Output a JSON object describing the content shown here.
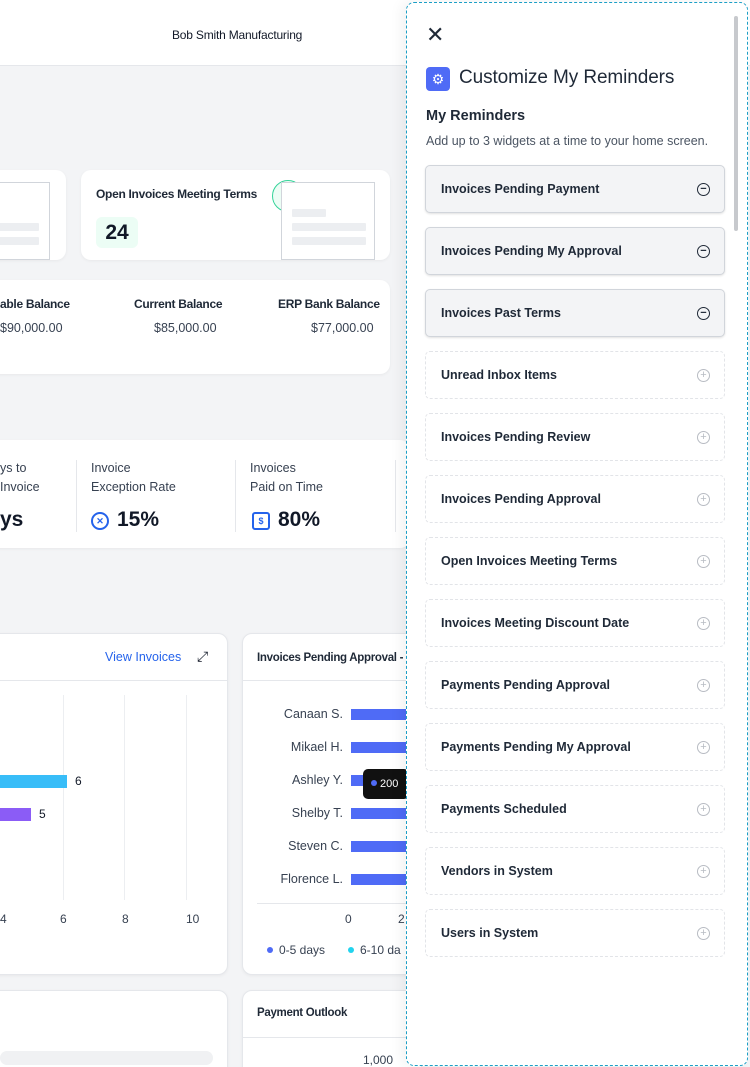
{
  "header": {
    "company": "Bob Smith Manufacturing"
  },
  "open_invoices_card": {
    "title": "Open Invoices Meeting Terms",
    "count": "24"
  },
  "balances": [
    {
      "label": "able Balance",
      "value": "$90,000.00"
    },
    {
      "label": "Current Balance",
      "value": "$85,000.00"
    },
    {
      "label": "ERP Bank Balance",
      "value": "$77,000.00"
    }
  ],
  "kpis": [
    {
      "line1": "ys to",
      "line2": "Invoice",
      "value": "ys"
    },
    {
      "line1": "Invoice",
      "line2": "Exception Rate",
      "value": "15%",
      "icon": "x-circle-icon"
    },
    {
      "line1": "Invoices",
      "line2": "Paid on Time",
      "value": "80%",
      "icon": "receipt-icon"
    }
  ],
  "invoices_chart": {
    "link": "View Invoices",
    "ticks": [
      "4",
      "6",
      "8",
      "10"
    ],
    "bar_labels": [
      "6",
      "5"
    ],
    "colors": {
      "cyan": "#38bdf8",
      "purple": "#8b5cf6"
    }
  },
  "chart_data": {
    "type": "bar",
    "title": "Invoices Pending Approval - A",
    "categories": [
      "Canaan S.",
      "Mikael H.",
      "Ashley Y.",
      "Shelby T.",
      "Steven C.",
      "Florence L."
    ],
    "x_ticks": [
      "0",
      "2"
    ],
    "tooltip": "200",
    "legend": [
      "0-5 days",
      "6-10 da"
    ],
    "colors": {
      "series1": "#4f6bf6",
      "series2": "#22d3ee"
    }
  },
  "payment_outlook": {
    "title": "Payment Outlook",
    "tick": "1,000"
  },
  "drawer": {
    "close_icon": "close-icon",
    "title": "Customize My Reminders",
    "section_title": "My Reminders",
    "section_sub": "Add up to 3 widgets at a time to your home screen.",
    "selected": [
      {
        "label": "Invoices Pending Payment"
      },
      {
        "label": "Invoices Pending My Approval"
      },
      {
        "label": "Invoices Past Terms"
      }
    ],
    "available": [
      {
        "label": "Unread Inbox Items"
      },
      {
        "label": "Invoices Pending Review"
      },
      {
        "label": "Invoices Pending Approval"
      },
      {
        "label": "Open Invoices Meeting Terms"
      },
      {
        "label": "Invoices Meeting Discount Date"
      },
      {
        "label": "Payments Pending Approval"
      },
      {
        "label": "Payments Pending My Approval"
      },
      {
        "label": "Payments Scheduled"
      },
      {
        "label": "Vendors in System"
      },
      {
        "label": "Users in System"
      }
    ]
  }
}
